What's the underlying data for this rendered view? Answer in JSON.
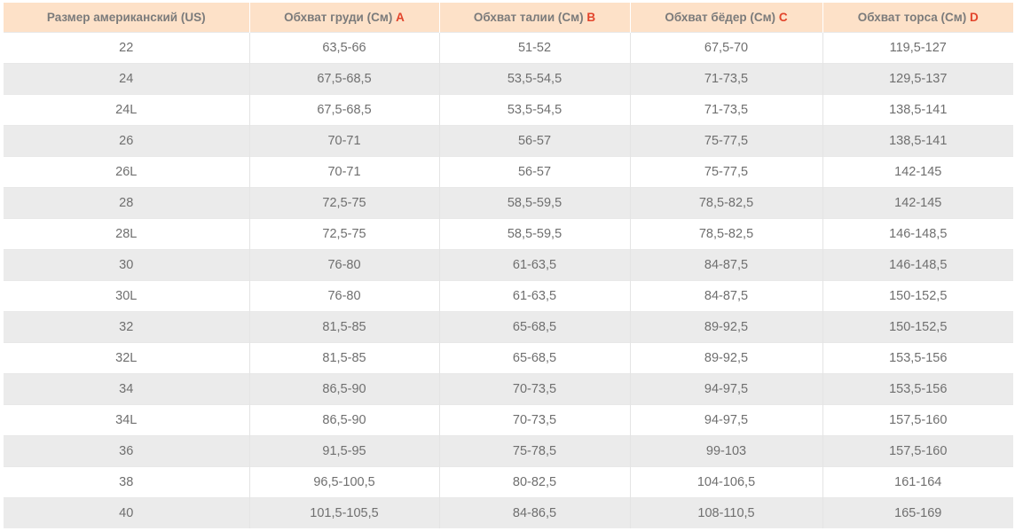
{
  "table": {
    "headers": [
      {
        "label": "Размер американский (US)",
        "mark": ""
      },
      {
        "label": "Обхват груди (См)",
        "mark": "A"
      },
      {
        "label": "Обхват талии (См)",
        "mark": "B"
      },
      {
        "label": "Обхват бёдер (См)",
        "mark": "C"
      },
      {
        "label": "Обхват торса (См)",
        "mark": "D"
      }
    ],
    "rows": [
      [
        "22",
        "63,5-66",
        "51-52",
        "67,5-70",
        "119,5-127"
      ],
      [
        "24",
        "67,5-68,5",
        "53,5-54,5",
        "71-73,5",
        "129,5-137"
      ],
      [
        "24L",
        "67,5-68,5",
        "53,5-54,5",
        "71-73,5",
        "138,5-141"
      ],
      [
        "26",
        "70-71",
        "56-57",
        "75-77,5",
        "138,5-141"
      ],
      [
        "26L",
        "70-71",
        "56-57",
        "75-77,5",
        "142-145"
      ],
      [
        "28",
        "72,5-75",
        "58,5-59,5",
        "78,5-82,5",
        "142-145"
      ],
      [
        "28L",
        "72,5-75",
        "58,5-59,5",
        "78,5-82,5",
        "146-148,5"
      ],
      [
        "30",
        "76-80",
        "61-63,5",
        "84-87,5",
        "146-148,5"
      ],
      [
        "30L",
        "76-80",
        "61-63,5",
        "84-87,5",
        "150-152,5"
      ],
      [
        "32",
        "81,5-85",
        "65-68,5",
        "89-92,5",
        "150-152,5"
      ],
      [
        "32L",
        "81,5-85",
        "65-68,5",
        "89-92,5",
        "153,5-156"
      ],
      [
        "34",
        "86,5-90",
        "70-73,5",
        "94-97,5",
        "153,5-156"
      ],
      [
        "34L",
        "86,5-90",
        "70-73,5",
        "94-97,5",
        "157,5-160"
      ],
      [
        "36",
        "91,5-95",
        "75-78,5",
        "99-103",
        "157,5-160"
      ],
      [
        "38",
        "96,5-100,5",
        "80-82,5",
        "104-106,5",
        "161-164"
      ],
      [
        "40",
        "101,5-105,5",
        "84-86,5",
        "108-110,5",
        "165-169"
      ]
    ]
  },
  "colors": {
    "header_bg": "#fde1c8",
    "header_text": "#7b7b7b",
    "header_mark": "#e2442b",
    "cell_text": "#6f6f6f",
    "row_stripe": "#ebebeb"
  }
}
